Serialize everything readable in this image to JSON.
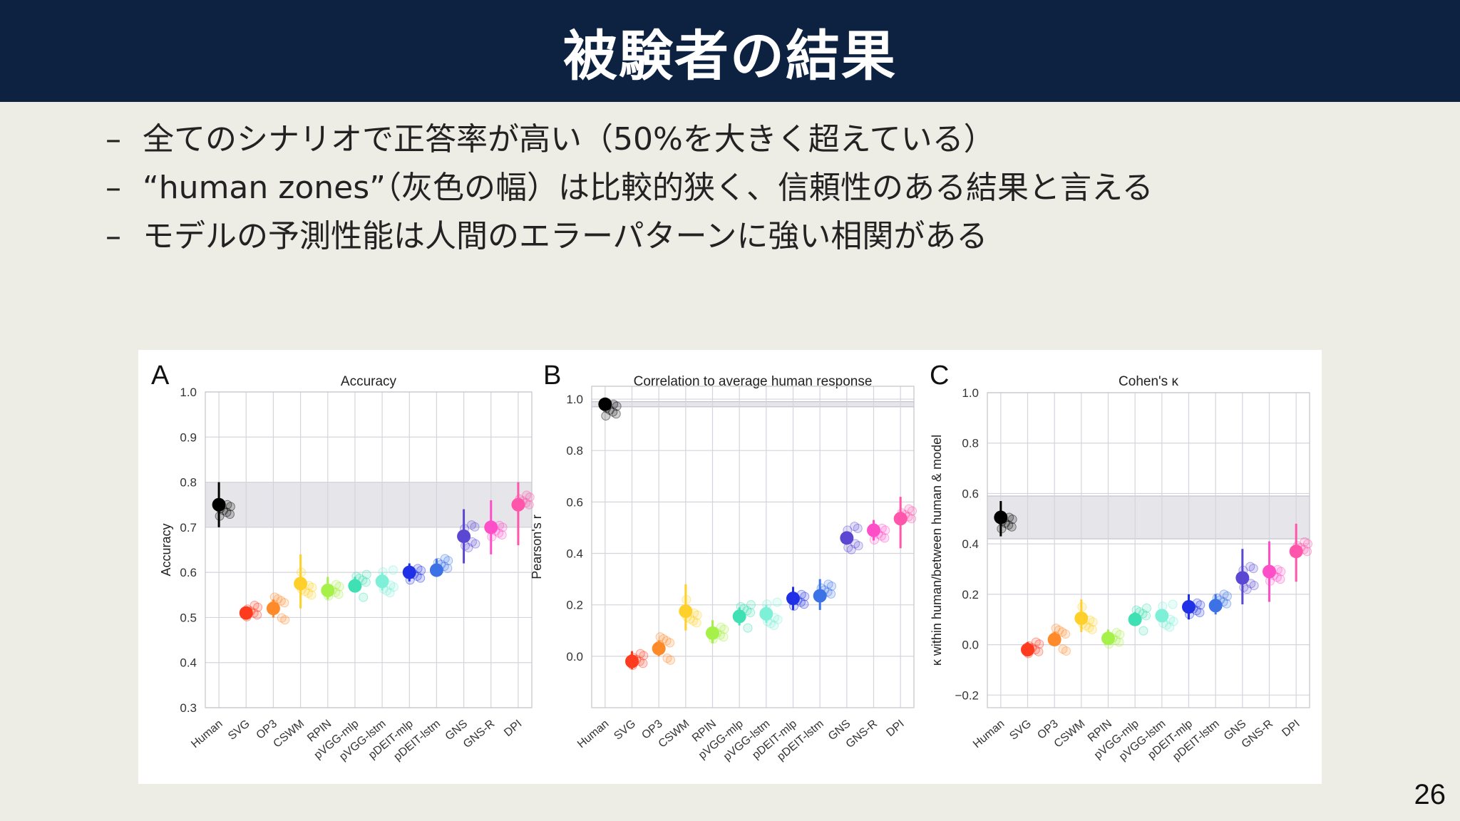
{
  "slide": {
    "title": "被験者の結果",
    "bullet_marker": "–",
    "bullets": [
      "全てのシナリオで正答率が高い（50%を大きく超えている）",
      "“human zones”（灰色の幅）は比較的狭く、信頼性のある結果と言える",
      "モデルの予測性能は人間のエラーパターンに強い相関がある"
    ],
    "page_number": "26"
  },
  "colors": {
    "header_bg": "#0d2240",
    "slide_bg": "#edede5",
    "human_zone": "#e6e6ea"
  },
  "chart_data": [
    {
      "panel": "A",
      "type": "scatter",
      "title": "Accuracy",
      "xlabel": "",
      "ylabel": "Accuracy",
      "categories": [
        "Human",
        "SVG",
        "OP3",
        "CSWM",
        "RPIN",
        "pVGG-mlp",
        "pVGG-lstm",
        "pDEIT-mlp",
        "pDEIT-lstm",
        "GNS",
        "GNS-R",
        "DPI"
      ],
      "colors": [
        "#000000",
        "#ff3b1f",
        "#ff8a2a",
        "#ffd02a",
        "#a6f04a",
        "#3ee0b4",
        "#7ff0d8",
        "#1f30e6",
        "#3c72e6",
        "#5a48d2",
        "#ff4fc8",
        "#ff55aa"
      ],
      "values": [
        0.75,
        0.51,
        0.52,
        0.575,
        0.56,
        0.57,
        0.58,
        0.6,
        0.605,
        0.68,
        0.7,
        0.75
      ],
      "error_low": [
        0.7,
        0.5,
        0.5,
        0.52,
        0.54,
        0.56,
        0.56,
        0.58,
        0.59,
        0.62,
        0.64,
        0.66
      ],
      "error_high": [
        0.8,
        0.52,
        0.54,
        0.64,
        0.59,
        0.59,
        0.6,
        0.62,
        0.63,
        0.74,
        0.76,
        0.8
      ],
      "human_zone": [
        0.7,
        0.8
      ],
      "ylim": [
        0.3,
        1.0
      ],
      "yticks": [
        "0.3",
        "0.4",
        "0.5",
        "0.6",
        "0.7",
        "0.8",
        "0.9",
        "1.0"
      ],
      "grid": true
    },
    {
      "panel": "B",
      "type": "scatter",
      "title": "Correlation to average human response",
      "xlabel": "",
      "ylabel": "Pearson's r",
      "categories": [
        "Human",
        "SVG",
        "OP3",
        "CSWM",
        "RPIN",
        "pVGG-mlp",
        "pVGG-lstm",
        "pDEIT-mlp",
        "pDEIT-lstm",
        "GNS",
        "GNS-R",
        "DPI"
      ],
      "colors": [
        "#000000",
        "#ff3b1f",
        "#ff8a2a",
        "#ffd02a",
        "#a6f04a",
        "#3ee0b4",
        "#7ff0d8",
        "#1f30e6",
        "#3c72e6",
        "#5a48d2",
        "#ff4fc8",
        "#ff55aa"
      ],
      "values": [
        0.98,
        -0.02,
        0.03,
        0.175,
        0.09,
        0.155,
        0.165,
        0.225,
        0.235,
        0.46,
        0.49,
        0.535
      ],
      "error_low": [
        0.97,
        -0.05,
        0.0,
        0.1,
        0.05,
        0.12,
        0.13,
        0.18,
        0.18,
        0.44,
        0.45,
        0.42
      ],
      "error_high": [
        0.99,
        0.02,
        0.06,
        0.28,
        0.14,
        0.19,
        0.2,
        0.27,
        0.3,
        0.48,
        0.53,
        0.62
      ],
      "human_zone": [
        0.97,
        0.99
      ],
      "ylim": [
        -0.2,
        1.05
      ],
      "yticks": [
        "0.0",
        "0.2",
        "0.4",
        "0.6",
        "0.8",
        "1.0"
      ],
      "grid": true
    },
    {
      "panel": "C",
      "type": "scatter",
      "title": "Cohen's κ",
      "xlabel": "",
      "ylabel": "κ within human/between human & model",
      "categories": [
        "Human",
        "SVG",
        "OP3",
        "CSWM",
        "RPIN",
        "pVGG-mlp",
        "pVGG-lstm",
        "pDEIT-mlp",
        "pDEIT-lstm",
        "GNS",
        "GNS-R",
        "DPI"
      ],
      "colors": [
        "#000000",
        "#ff3b1f",
        "#ff8a2a",
        "#ffd02a",
        "#a6f04a",
        "#3ee0b4",
        "#7ff0d8",
        "#1f30e6",
        "#3c72e6",
        "#5a48d2",
        "#ff4fc8",
        "#ff55aa"
      ],
      "values": [
        0.505,
        -0.02,
        0.02,
        0.105,
        0.025,
        0.1,
        0.115,
        0.15,
        0.155,
        0.265,
        0.29,
        0.37
      ],
      "error_low": [
        0.43,
        -0.04,
        0.0,
        0.05,
        0.0,
        0.08,
        0.09,
        0.1,
        0.12,
        0.16,
        0.17,
        0.25
      ],
      "error_high": [
        0.57,
        0.01,
        0.05,
        0.18,
        0.06,
        0.13,
        0.14,
        0.2,
        0.2,
        0.38,
        0.41,
        0.48
      ],
      "human_zone": [
        0.42,
        0.59
      ],
      "ylim": [
        -0.25,
        1.0
      ],
      "yticks": [
        "−0.2",
        "0.0",
        "0.2",
        "0.4",
        "0.6",
        "0.8",
        "1.0"
      ],
      "grid": true
    }
  ]
}
